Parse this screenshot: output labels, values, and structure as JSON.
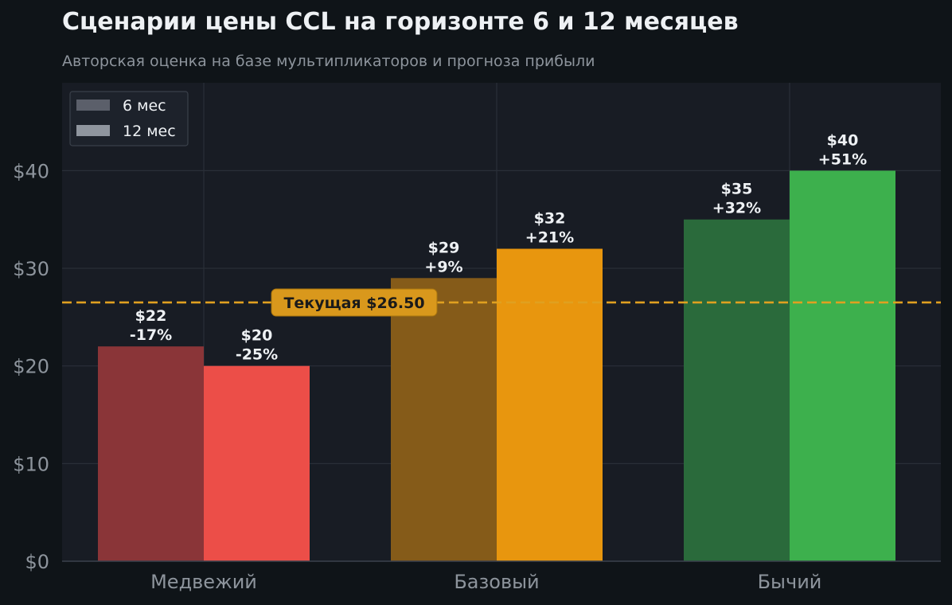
{
  "title": "Сценарии цены CCL на горизонте 6 и 12 месяцев",
  "subtitle": "Авторская оценка на базе мультипликаторов и прогноза прибыли",
  "colors": {
    "background": "#0f1418",
    "plot_background": "#181c24",
    "grid": "#2a2f38",
    "axis_text": "#8d949c",
    "label_text": "#eef1f4",
    "reference_line": "#e0a020",
    "legend_6m": "#5b5f6a",
    "legend_12m": "#8f959e"
  },
  "chart_data": {
    "type": "bar",
    "categories": [
      "Медвежий",
      "Базовый",
      "Бычий"
    ],
    "series": [
      {
        "name": "6 мес",
        "values": [
          22,
          29,
          35
        ],
        "labels": [
          "$22\n-17%",
          "$29\n+9%",
          "$35\n+32%"
        ],
        "colors": [
          "#8a3538",
          "#855b19",
          "#2a6a3b"
        ]
      },
      {
        "name": "12 мес",
        "values": [
          20,
          32,
          40
        ],
        "labels": [
          "$20\n-25%",
          "$32\n+21%",
          "$40\n+51%"
        ],
        "colors": [
          "#ec4e48",
          "#e8960e",
          "#3db04d"
        ]
      }
    ],
    "ylim": [
      0,
      49
    ],
    "yticks": [
      0,
      10,
      20,
      30,
      40
    ],
    "ytick_labels": [
      "$0",
      "$10",
      "$20",
      "$30",
      "$40"
    ],
    "reference_line": {
      "value": 26.5,
      "label": "Текущая $26.50"
    },
    "legend": "top-left",
    "grid": true
  }
}
